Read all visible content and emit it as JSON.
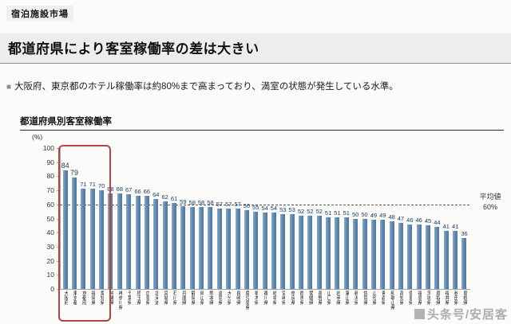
{
  "header": {
    "kicker": "宿泊施設市場",
    "title": "都道府県により客室稼働率の差は大きい"
  },
  "bullet": {
    "marker": "■",
    "text": "大阪府、東京都のホテル稼働率は約80%まで高まっており、満室の状態が発生している水準。"
  },
  "chart": {
    "title": "都道府県別客室稼働率",
    "unit_label": "(%)",
    "avg": {
      "line1": "平均値",
      "line2": "60%"
    },
    "bar_color": "#5d85ae",
    "value_color": "#1d3c63",
    "highlight_color": "#b5453f"
  },
  "chart_data": {
    "type": "bar",
    "title": "都道府県別客室稼働率",
    "ylabel": "(%)",
    "ylim": [
      0,
      100
    ],
    "yticks": [
      0,
      10,
      20,
      30,
      40,
      50,
      60,
      70,
      80,
      90,
      100
    ],
    "average_line": 60,
    "average_label": "平均値 60%",
    "highlight_first_n": 5,
    "grid": false,
    "legend": false,
    "categories": [
      "大阪府",
      "東京都",
      "京都府",
      "福岡県",
      "愛知県",
      "沖縄県",
      "神奈川県",
      "千葉県",
      "埼玉県",
      "広島県",
      "北海道",
      "宮城県",
      "石川県",
      "兵庫県",
      "静岡県",
      "岡山県",
      "熊本県",
      "滋賀県",
      "大分県",
      "長崎県",
      "鹿児島県",
      "栃木県",
      "香川県",
      "岐阜県",
      "宮崎県",
      "奈良県",
      "群馬県",
      "愛媛県",
      "長野県",
      "山口県",
      "岩手県",
      "富山県",
      "新潟県",
      "佐賀県",
      "山形県",
      "青森県",
      "和歌山県",
      "高知県",
      "徳島県",
      "福島県",
      "茨城県",
      "鳥取県",
      "福井県",
      "秋田県",
      "島根県"
    ],
    "values": [
      84,
      79,
      71,
      71,
      70,
      68,
      68,
      67,
      66,
      66,
      64,
      62,
      61,
      59,
      58,
      58,
      58,
      57,
      57,
      57,
      56,
      55,
      54,
      54,
      53,
      53,
      52,
      52,
      52,
      51,
      51,
      51,
      50,
      50,
      49,
      49,
      48,
      47,
      46,
      46,
      45,
      44,
      41,
      41,
      36
    ]
  },
  "watermark": {
    "text": "头条号/安居客"
  }
}
